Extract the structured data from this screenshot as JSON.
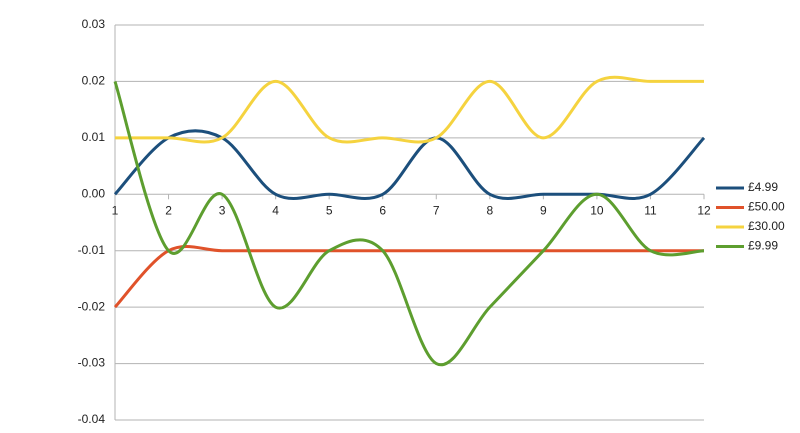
{
  "chart_data": {
    "type": "line",
    "x": [
      1,
      2,
      3,
      4,
      5,
      6,
      7,
      8,
      9,
      10,
      11,
      12
    ],
    "xlim": [
      1,
      12
    ],
    "xticks": [
      1,
      2,
      3,
      4,
      5,
      6,
      7,
      8,
      9,
      10,
      11,
      12
    ],
    "ylim": [
      -0.04,
      0.03
    ],
    "yticks": [
      -0.04,
      -0.03,
      -0.02,
      -0.01,
      {
        "value": 0,
        "label": "0.00"
      },
      0.01,
      0.02,
      0.03
    ],
    "grid": true,
    "smooth": true,
    "legend": "right",
    "series": [
      {
        "name": "£4.99",
        "color": "#1c4f7c",
        "values": [
          0,
          0.01,
          0.01,
          0,
          0,
          0,
          0.01,
          0,
          0,
          0,
          0,
          0.01
        ]
      },
      {
        "name": "£50.00",
        "color": "#e0522a",
        "values": [
          -0.02,
          -0.01,
          -0.01,
          -0.01,
          -0.01,
          -0.01,
          -0.01,
          -0.01,
          -0.01,
          -0.01,
          -0.01,
          -0.01
        ]
      },
      {
        "name": "£30.00",
        "color": "#f5d33f",
        "values": [
          0.01,
          0.01,
          0.01,
          0.02,
          0.01,
          0.01,
          0.01,
          0.02,
          0.01,
          0.02,
          0.02,
          0.02
        ]
      },
      {
        "name": "£9.99",
        "color": "#5d9e2f",
        "values": [
          0.02,
          -0.01,
          0,
          -0.02,
          -0.01,
          -0.01,
          -0.03,
          -0.02,
          -0.01,
          0,
          -0.01,
          -0.01
        ]
      }
    ]
  }
}
